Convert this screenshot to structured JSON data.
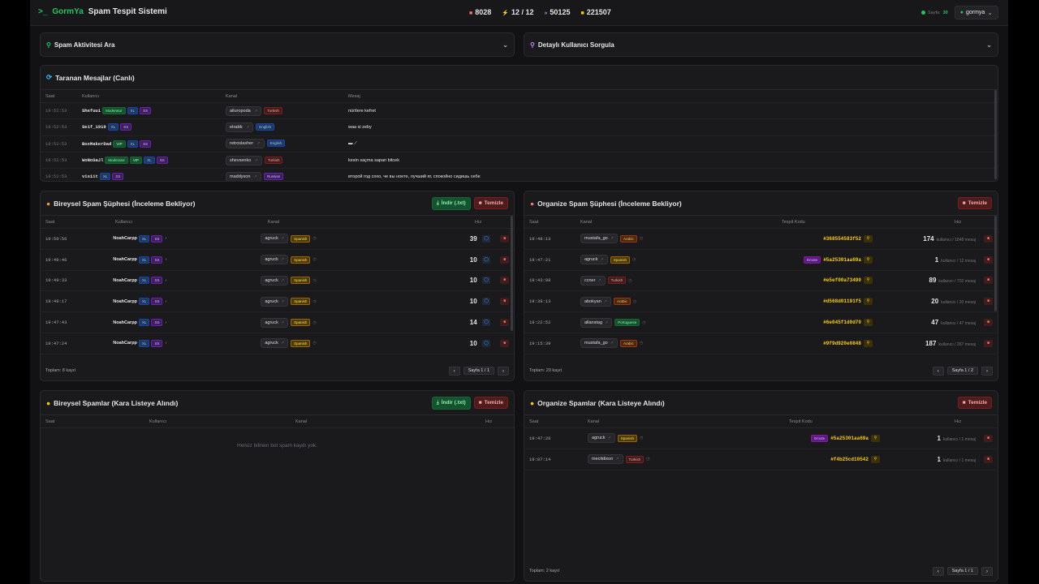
{
  "header": {
    "brand_a": "GormYa",
    "brand_b": "Spam Tespit Sistemi",
    "stats": [
      {
        "icon": "camera-icon",
        "value": "8028"
      },
      {
        "icon": "bolt-icon",
        "value": "12 / 12"
      },
      {
        "icon": "chat-icon",
        "value": "50125"
      },
      {
        "icon": "database-icon",
        "value": "221507"
      }
    ],
    "status_label": "Sayfa:",
    "status_value": "30",
    "user": "gormya"
  },
  "search": {
    "spam_activity": "Spam Aktivitesi Ara",
    "user_query": "Detaylı Kullanıcı Sorgula"
  },
  "live": {
    "title": "Taranan Mesajlar (Canlı)",
    "cols": [
      "Saat",
      "Kullanıcı",
      "Kanal",
      "Mesaj"
    ],
    "rows": [
      {
        "time": "19:52:53",
        "user": "Shefuu1",
        "tags": [
          "Moderator",
          "XL",
          "SS"
        ],
        "chan": "ailuropoda",
        "lang": "Turkish",
        "msg": "nürtlere kefret"
      },
      {
        "time": "19:52:53",
        "user": "Seif_1919",
        "tags": [
          "XL",
          "SS"
        ],
        "chan": "etrabb",
        "lang": "English",
        "msg": "waa si zeby"
      },
      {
        "time": "19:52:53",
        "user": "BoxMakerDad",
        "tags": [
          "VIP",
          "XL",
          "SS"
        ],
        "chan": "retroslasher",
        "lang": "English",
        "msg": "▬ ⟋"
      },
      {
        "time": "19:52:53",
        "user": "WoNoSaJl",
        "tags": [
          "Moderator",
          "VIP",
          "XL",
          "SS"
        ],
        "chan": "shevsenko",
        "lang": "Turkish",
        "msg": "kesin saçma sapan bitcek"
      },
      {
        "time": "19:52:53",
        "user": "vis1it",
        "tags": [
          "XL",
          "SS"
        ],
        "chan": "maddyson",
        "lang": "Russian",
        "msg": "второй год сохо, че вы ноете, лучший яг, спокойно сидишь себе"
      }
    ]
  },
  "ind_pending": {
    "title": "Bireysel Spam Şüphesi (İnceleme Bekliyor)",
    "download": "İndir (.txt)",
    "clear": "Temizle",
    "cols": [
      "Saat",
      "Kullanıcı",
      "Kanal",
      "Hız"
    ],
    "rows": [
      {
        "time": "19:50:56",
        "user": "NoahCarpp",
        "chan": "agruck",
        "lang": "Spanish",
        "speed": "39"
      },
      {
        "time": "19:49:46",
        "user": "NoahCarpp",
        "chan": "agruck",
        "lang": "Spanish",
        "speed": "10"
      },
      {
        "time": "19:49:33",
        "user": "NoahCarpp",
        "chan": "agruck",
        "lang": "Spanish",
        "speed": "10"
      },
      {
        "time": "19:49:17",
        "user": "NoahCarpp",
        "chan": "agruck",
        "lang": "Spanish",
        "speed": "10"
      },
      {
        "time": "19:47:43",
        "user": "NoahCarpp",
        "chan": "agruck",
        "lang": "Spanish",
        "speed": "14"
      },
      {
        "time": "19:47:24",
        "user": "NoahCarpp",
        "chan": "agruck",
        "lang": "Spanish",
        "speed": "10"
      }
    ],
    "total": "Toplam: 8 kayıt",
    "page": "Sayfa 1 / 1"
  },
  "org_pending": {
    "title": "Organize Spam Şüphesi (İnceleme Bekliyor)",
    "clear": "Temizle",
    "cols": [
      "Saat",
      "Kanal",
      "Tespit Kodu",
      "Hız"
    ],
    "rows": [
      {
        "time": "19:48:13",
        "chan": "mustafa_go",
        "lang": "Arabic",
        "emote": "",
        "code": "#368554583f52",
        "speed": "174",
        "sub": "kullanıcı / 1848 mesaj"
      },
      {
        "time": "19:47:21",
        "chan": "agruck",
        "lang": "Spanish",
        "emote": "Emote",
        "code": "#5a25301aa69a",
        "speed": "1",
        "sub": "kullanıcı / 12 mesaj"
      },
      {
        "time": "19:43:08",
        "chan": "ccner",
        "lang": "Turkish",
        "emote": "",
        "code": "#e5ef00a73490",
        "speed": "89",
        "sub": "kullanıcı / 702 mesaj"
      },
      {
        "time": "19:38:13",
        "chan": "abokyan",
        "lang": "Arabic",
        "emote": "",
        "code": "#d568d01191f5",
        "speed": "20",
        "sub": "kullanıcı / 20 mesaj"
      },
      {
        "time": "19:22:52",
        "chan": "allanstag",
        "lang": "Portuguese",
        "emote": "",
        "code": "#6e045f1d0d70",
        "speed": "47",
        "sub": "kullanıcı / 47 mesaj"
      },
      {
        "time": "19:15:39",
        "chan": "mustafa_go",
        "lang": "Arabic",
        "emote": "",
        "code": "#9f9d920e0848",
        "speed": "187",
        "sub": "kullanıcı / 267 mesaj"
      }
    ],
    "total": "Toplam: 20 kayıt",
    "page": "Sayfa 1 / 2"
  },
  "ind_black": {
    "title": "Bireysel Spamlar (Kara Listeye Alındı)",
    "download": "İndir (.txt)",
    "clear": "Temizle",
    "cols": [
      "Saat",
      "Kullanıcı",
      "Kanal",
      "Hız"
    ],
    "empty": "Henüz bilinen bot spam kaydı yok."
  },
  "org_black": {
    "title": "Organize Spamlar (Kara Listeye Alındı)",
    "clear": "Temizle",
    "cols": [
      "Saat",
      "Kanal",
      "Tespit Kodu",
      "Hız"
    ],
    "rows": [
      {
        "time": "19:47:20",
        "chan": "agruck",
        "lang": "Spanish",
        "emote": "Emote",
        "code": "#5a25301aa69a",
        "speed": "1",
        "sub": "kullanıcı / 1 mesaj"
      },
      {
        "time": "19:07:14",
        "chan": "mecitdixon",
        "lang": "Turkish",
        "emote": "",
        "code": "#f4b25cd10542",
        "speed": "1",
        "sub": "kullanıcı / 1 mesaj"
      }
    ],
    "total": "Toplam: 2 kayıt",
    "page": "Sayfa 1 / 1"
  }
}
